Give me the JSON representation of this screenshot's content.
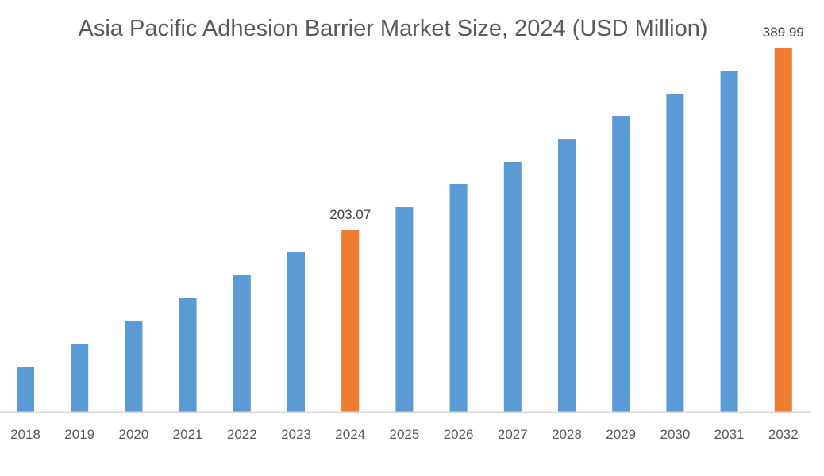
{
  "chart_data": {
    "type": "bar",
    "title": "Asia Pacific Adhesion Barrier Market Size, 2024 (USD Million)",
    "xlabel": "",
    "ylabel": "",
    "categories": [
      "2018",
      "2019",
      "2020",
      "2021",
      "2022",
      "2023",
      "2024",
      "2025",
      "2026",
      "2027",
      "2028",
      "2029",
      "2030",
      "2031",
      "2032"
    ],
    "values": [
      63.3,
      86.1,
      109.6,
      133.2,
      156.8,
      180.3,
      203.07,
      226.6,
      250.2,
      273.0,
      296.5,
      320.1,
      342.9,
      366.4,
      389.99
    ],
    "data_labels": {
      "2024": "203.07",
      "2032": "389.99"
    },
    "highlighted": [
      "2024",
      "2032"
    ],
    "ylim": [
      17,
      400
    ],
    "grid": false,
    "legend": "none",
    "colors": {
      "default": "#5B9BD5",
      "highlight": "#ED7D31",
      "axis": "#D9D9D9",
      "text": "#595959"
    }
  }
}
